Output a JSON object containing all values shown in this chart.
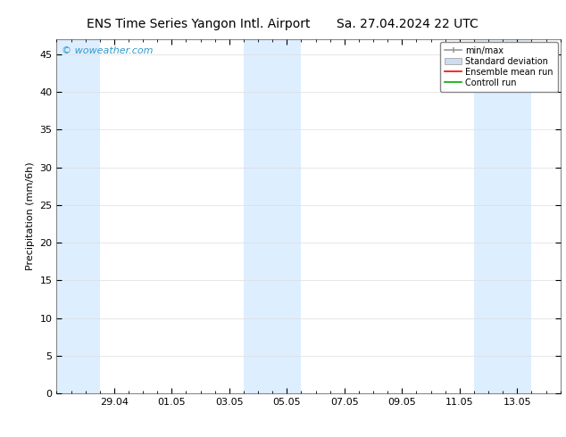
{
  "title_left": "ENS Time Series Yangon Intl. Airport",
  "title_right": "Sa. 27.04.2024 22 UTC",
  "ylabel": "Precipitation (mm/6h)",
  "ylim": [
    0,
    47
  ],
  "yticks": [
    0,
    5,
    10,
    15,
    20,
    25,
    30,
    35,
    40,
    45
  ],
  "bg_color": "#ffffff",
  "plot_bg_color": "#ffffff",
  "watermark": "© woweather.com",
  "watermark_color": "#3399cc",
  "shaded_bands": [
    {
      "x_start": 27.0,
      "x_end": 28.5,
      "color": "#ddeeff"
    },
    {
      "x_start": 33.5,
      "x_end": 35.5,
      "color": "#ddeeff"
    },
    {
      "x_start": 41.5,
      "x_end": 43.5,
      "color": "#ddeeff"
    }
  ],
  "xtick_labels": [
    "29.04",
    "01.05",
    "03.05",
    "05.05",
    "07.05",
    "09.05",
    "11.05",
    "13.05"
  ],
  "xtick_positions": [
    29.0,
    31.0,
    33.0,
    35.0,
    37.0,
    39.0,
    41.0,
    43.0
  ],
  "xlim": [
    27.0,
    44.5
  ],
  "legend_labels": [
    "min/max",
    "Standard deviation",
    "Ensemble mean run",
    "Controll run"
  ],
  "legend_minmax_color": "#999999",
  "legend_std_color": "#ccddef",
  "legend_ens_color": "#ff0000",
  "legend_ctrl_color": "#00aa00",
  "grid_color": "#dddddd",
  "tick_color": "#000000",
  "spine_color": "#888888",
  "font_size_title": 10,
  "font_size_labels": 8,
  "font_size_ticks": 8,
  "font_size_watermark": 8,
  "font_size_legend": 7
}
